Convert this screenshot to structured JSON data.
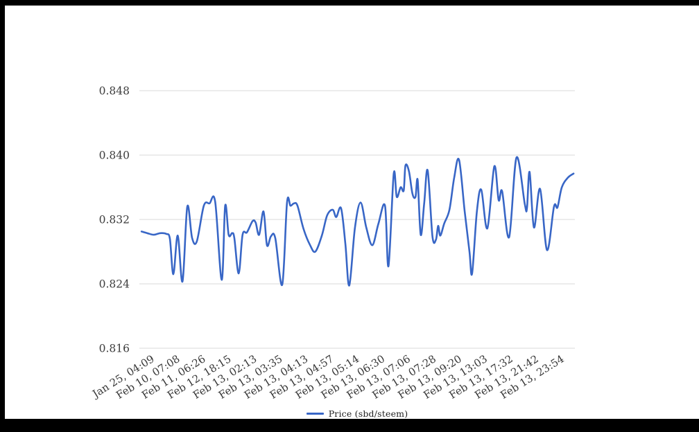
{
  "frame": {
    "border_color": "#000000",
    "background_color": "#ffffff"
  },
  "chart_data": {
    "type": "line",
    "title": "",
    "xlabel": "",
    "ylabel": "",
    "grid": true,
    "legend": {
      "label": "Price (sbd/steem)",
      "position": "bottom-center"
    },
    "y_axis": {
      "min": 0.816,
      "max": 0.848,
      "tick_labels": [
        "0.848",
        "0.840",
        "0.832",
        "0.824",
        "0.816"
      ],
      "tick_values": [
        0.848,
        0.84,
        0.832,
        0.824,
        0.816
      ]
    },
    "x_axis": {
      "tick_labels": [
        "Jan 25, 04:09",
        "Feb 10, 07:08",
        "Feb 11, 06:26",
        "Feb 12, 18:15",
        "Feb 13, 02:13",
        "Feb 13, 03:35",
        "Feb 13, 04:13",
        "Feb 13, 04:57",
        "Feb 13, 05:14",
        "Feb 13, 06:30",
        "Feb 13, 07:06",
        "Feb 13, 07:28",
        "Feb 13, 09:20",
        "Feb 13, 13:03",
        "Feb 13, 17:32",
        "Feb 13, 21:42",
        "Feb 13, 23:54"
      ],
      "rotation_degrees": -32
    },
    "series": [
      {
        "name": "Price (sbd/steem)",
        "color": "#3866c6",
        "points": [
          [
            0.005,
            0.8305
          ],
          [
            0.018,
            0.8303
          ],
          [
            0.033,
            0.8301
          ],
          [
            0.048,
            0.8303
          ],
          [
            0.062,
            0.8302
          ],
          [
            0.07,
            0.8296
          ],
          [
            0.078,
            0.8252
          ],
          [
            0.088,
            0.83
          ],
          [
            0.099,
            0.8243
          ],
          [
            0.11,
            0.8336
          ],
          [
            0.121,
            0.8297
          ],
          [
            0.132,
            0.8293
          ],
          [
            0.148,
            0.8337
          ],
          [
            0.161,
            0.834
          ],
          [
            0.174,
            0.8342
          ],
          [
            0.189,
            0.8245
          ],
          [
            0.197,
            0.8337
          ],
          [
            0.205,
            0.8301
          ],
          [
            0.213,
            0.8303
          ],
          [
            0.218,
            0.8297
          ],
          [
            0.228,
            0.8253
          ],
          [
            0.237,
            0.8301
          ],
          [
            0.247,
            0.8304
          ],
          [
            0.26,
            0.8318
          ],
          [
            0.267,
            0.8316
          ],
          [
            0.275,
            0.8301
          ],
          [
            0.285,
            0.833
          ],
          [
            0.293,
            0.8288
          ],
          [
            0.302,
            0.8299
          ],
          [
            0.312,
            0.8297
          ],
          [
            0.328,
            0.8239
          ],
          [
            0.339,
            0.8341
          ],
          [
            0.347,
            0.8337
          ],
          [
            0.355,
            0.834
          ],
          [
            0.363,
            0.8337
          ],
          [
            0.377,
            0.8308
          ],
          [
            0.392,
            0.8288
          ],
          [
            0.404,
            0.828
          ],
          [
            0.419,
            0.83
          ],
          [
            0.431,
            0.8325
          ],
          [
            0.444,
            0.8332
          ],
          [
            0.452,
            0.8323
          ],
          [
            0.463,
            0.8334
          ],
          [
            0.473,
            0.829
          ],
          [
            0.482,
            0.8238
          ],
          [
            0.495,
            0.831
          ],
          [
            0.508,
            0.8341
          ],
          [
            0.521,
            0.831
          ],
          [
            0.535,
            0.8288
          ],
          [
            0.549,
            0.8315
          ],
          [
            0.564,
            0.8337
          ],
          [
            0.572,
            0.8262
          ],
          [
            0.584,
            0.8377
          ],
          [
            0.591,
            0.8348
          ],
          [
            0.6,
            0.836
          ],
          [
            0.607,
            0.8356
          ],
          [
            0.611,
            0.8387
          ],
          [
            0.619,
            0.838
          ],
          [
            0.627,
            0.8352
          ],
          [
            0.634,
            0.8348
          ],
          [
            0.639,
            0.8369
          ],
          [
            0.646,
            0.8301
          ],
          [
            0.654,
            0.834
          ],
          [
            0.662,
            0.8381
          ],
          [
            0.673,
            0.8299
          ],
          [
            0.681,
            0.8295
          ],
          [
            0.686,
            0.8312
          ],
          [
            0.691,
            0.83
          ],
          [
            0.7,
            0.8315
          ],
          [
            0.712,
            0.8332
          ],
          [
            0.723,
            0.8372
          ],
          [
            0.734,
            0.8394
          ],
          [
            0.747,
            0.833
          ],
          [
            0.758,
            0.828
          ],
          [
            0.764,
            0.8253
          ],
          [
            0.775,
            0.833
          ],
          [
            0.785,
            0.8357
          ],
          [
            0.799,
            0.8309
          ],
          [
            0.815,
            0.8386
          ],
          [
            0.825,
            0.8344
          ],
          [
            0.833,
            0.8355
          ],
          [
            0.849,
            0.8298
          ],
          [
            0.866,
            0.8397
          ],
          [
            0.885,
            0.8339
          ],
          [
            0.89,
            0.8334
          ],
          [
            0.896,
            0.8379
          ],
          [
            0.906,
            0.831
          ],
          [
            0.92,
            0.8358
          ],
          [
            0.936,
            0.8282
          ],
          [
            0.952,
            0.8336
          ],
          [
            0.96,
            0.8335
          ],
          [
            0.97,
            0.836
          ],
          [
            0.984,
            0.8372
          ],
          [
            0.997,
            0.8377
          ]
        ]
      }
    ]
  }
}
